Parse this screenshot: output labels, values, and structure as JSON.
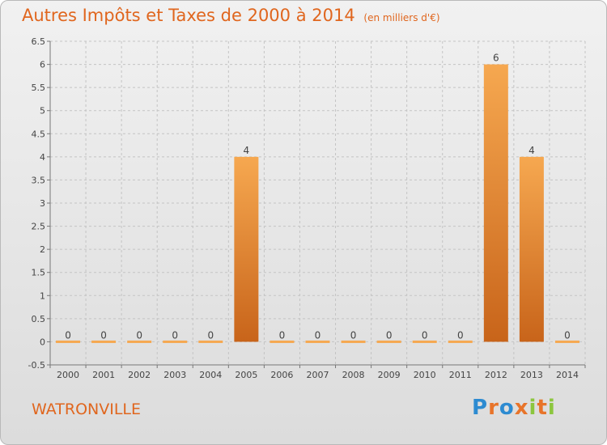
{
  "header": {
    "title": "Autres Impôts et Taxes de 2000 à 2014",
    "unit": "(en milliers d'€)"
  },
  "commune": "WATRONVILLE",
  "logo": {
    "text": "Proxiti",
    "colors": [
      "#2d8bd1",
      "#e8742a",
      "#2d8bd1",
      "#e8742a",
      "#8cc63e",
      "#e8742a",
      "#8cc63e"
    ]
  },
  "colors": {
    "accent": "#e0661e",
    "bar_top": "#f6a850",
    "bar_bottom": "#c8641a"
  },
  "chart_data": {
    "type": "bar",
    "title": "Autres Impôts et Taxes de 2000 à 2014",
    "subtitle": "(en milliers d'€)",
    "categories": [
      "2000",
      "2001",
      "2002",
      "2003",
      "2004",
      "2005",
      "2006",
      "2007",
      "2008",
      "2009",
      "2010",
      "2011",
      "2012",
      "2013",
      "2014"
    ],
    "values": [
      0,
      0,
      0,
      0,
      0,
      4,
      0,
      0,
      0,
      0,
      0,
      0,
      6,
      4,
      0
    ],
    "data_labels": [
      "0",
      "0",
      "0",
      "0",
      "0",
      "4",
      "0",
      "0",
      "0",
      "0",
      "0",
      "0",
      "6",
      "4",
      "0"
    ],
    "ylim": [
      -0.5,
      6.5
    ],
    "yticks": [
      -0.5,
      0,
      0.5,
      1,
      1.5,
      2,
      2.5,
      3,
      3.5,
      4,
      4.5,
      5,
      5.5,
      6,
      6.5
    ],
    "ytick_labels": [
      "-0.5",
      "0",
      "0.5",
      "1",
      "1.5",
      "2",
      "2.5",
      "3",
      "3.5",
      "4",
      "4.5",
      "5",
      "5.5",
      "6",
      "6.5"
    ],
    "grid": true
  }
}
